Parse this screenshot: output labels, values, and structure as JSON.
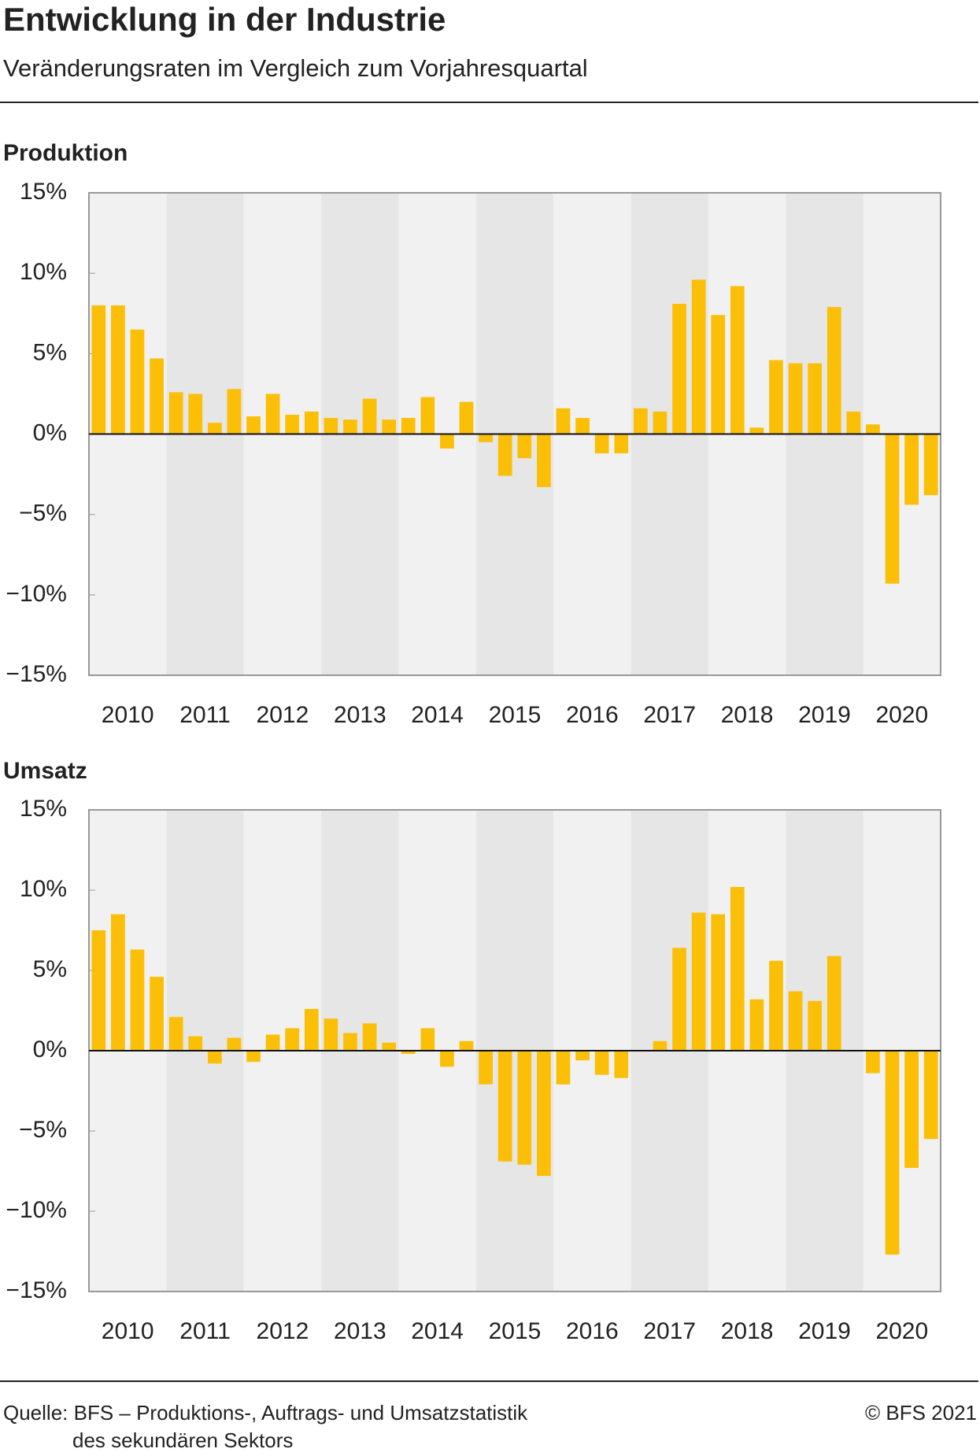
{
  "header": {
    "title": "Entwicklung in der Industrie",
    "subtitle": "Veränderungsraten im Vergleich zum Vorjahresquartal"
  },
  "chart_data": [
    {
      "type": "bar",
      "title": "Produktion",
      "color": "#fbbf07",
      "categories": [
        "2010",
        "2011",
        "2012",
        "2013",
        "2014",
        "2015",
        "2016",
        "2017",
        "2018",
        "2019",
        "2020"
      ],
      "values": [
        [
          8.0,
          8.0,
          6.5,
          4.7
        ],
        [
          2.6,
          2.5,
          0.7,
          2.8
        ],
        [
          1.1,
          2.5,
          1.2,
          1.4
        ],
        [
          1.0,
          0.9,
          2.2,
          0.9
        ],
        [
          1.0,
          2.3,
          -0.9,
          2.0
        ],
        [
          -0.5,
          -2.6,
          -1.5,
          -3.3
        ],
        [
          1.6,
          1.0,
          -1.2,
          -1.2
        ],
        [
          1.6,
          1.4,
          8.1,
          9.6
        ],
        [
          7.4,
          9.2,
          0.4,
          4.6
        ],
        [
          4.4,
          4.4,
          7.9,
          1.4
        ],
        [
          0.6,
          -9.3,
          -4.4,
          -3.8
        ]
      ],
      "ylim": [
        -15,
        15
      ],
      "yticks": [
        {
          "value": 15,
          "label": "15%"
        },
        {
          "value": 10,
          "label": "10%"
        },
        {
          "value": 5,
          "label": "5%"
        },
        {
          "value": 0,
          "label": "0%"
        },
        {
          "value": -5,
          "label": "−5%"
        },
        {
          "value": -10,
          "label": "−10%"
        },
        {
          "value": -15,
          "label": "−15%"
        }
      ]
    },
    {
      "type": "bar",
      "title": "Umsatz",
      "color": "#fbbf07",
      "categories": [
        "2010",
        "2011",
        "2012",
        "2013",
        "2014",
        "2015",
        "2016",
        "2017",
        "2018",
        "2019",
        "2020"
      ],
      "values": [
        [
          7.5,
          8.5,
          6.3,
          4.6
        ],
        [
          2.1,
          0.9,
          -0.8,
          0.8
        ],
        [
          -0.7,
          1.0,
          1.4,
          2.6
        ],
        [
          2.0,
          1.1,
          1.7,
          0.5
        ],
        [
          -0.2,
          1.4,
          -1.0,
          0.6
        ],
        [
          -2.1,
          -6.9,
          -7.1,
          -7.8
        ],
        [
          -2.1,
          -0.6,
          -1.5,
          -1.7
        ],
        [
          0,
          0.6,
          6.4,
          8.6
        ],
        [
          8.5,
          10.2,
          3.2,
          5.6
        ],
        [
          3.7,
          3.1,
          5.9,
          0
        ],
        [
          -1.4,
          -12.7,
          -7.3,
          -5.5
        ]
      ],
      "ylim": [
        -15,
        15
      ],
      "yticks": [
        {
          "value": 15,
          "label": "15%"
        },
        {
          "value": 10,
          "label": "10%"
        },
        {
          "value": 5,
          "label": "5%"
        },
        {
          "value": 0,
          "label": "0%"
        },
        {
          "value": -5,
          "label": "−5%"
        },
        {
          "value": -10,
          "label": "−10%"
        },
        {
          "value": -15,
          "label": "−15%"
        }
      ]
    }
  ],
  "footer": {
    "source_line1": "Quelle: BFS – Produktions-, Auftrags- und Umsatzstatistik",
    "source_line2": "des sekundären Sektors",
    "copyright": "© BFS 2021"
  }
}
